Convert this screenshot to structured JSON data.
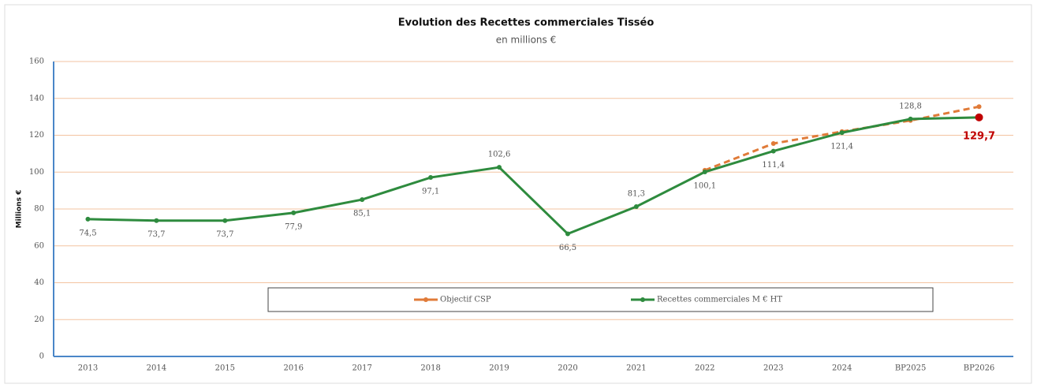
{
  "chart_data": {
    "type": "line",
    "title": "Evolution des Recettes commerciales Tisséo",
    "subtitle": "en millions €",
    "y_label": "Millions €",
    "categories": [
      "2013",
      "2014",
      "2015",
      "2016",
      "2017",
      "2018",
      "2019",
      "2020",
      "2021",
      "2022",
      "2023",
      "2024",
      "BP2025",
      "BP2026"
    ],
    "ylim": [
      0,
      160
    ],
    "yticks": [
      0,
      20,
      40,
      60,
      80,
      100,
      120,
      140,
      160
    ],
    "grid": true,
    "legend": "center",
    "series": [
      {
        "name": "Objectif CSP",
        "color": "#e07b39",
        "dashed": true,
        "values": [
          null,
          null,
          null,
          null,
          null,
          null,
          null,
          null,
          null,
          101,
          115.5,
          122,
          128,
          135.5
        ]
      },
      {
        "name": "Recettes commerciales M € HT",
        "color": "#2e8b3e",
        "highlight_color": "#c00000",
        "values": [
          74.5,
          73.7,
          73.7,
          77.9,
          85.1,
          97.1,
          102.6,
          66.5,
          81.3,
          100.1,
          111.4,
          121.4,
          128.8,
          129.7
        ],
        "value_labels": [
          "74,5",
          "73,7",
          "73,7",
          "77,9",
          "85,1",
          "97,1",
          "102,6",
          "66,5",
          "81,3",
          "100,1",
          "111,4",
          "121,4",
          "128,8",
          "129,7"
        ]
      }
    ]
  }
}
